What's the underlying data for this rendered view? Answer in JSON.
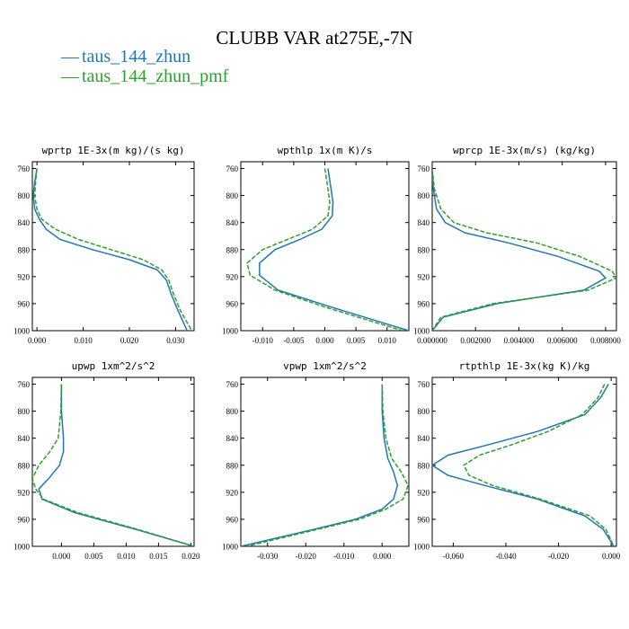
{
  "title": "CLUBB VAR at275E,-7N",
  "legend": [
    {
      "name": "taus_144_zhun",
      "color": "#1f77b4",
      "style": "solid"
    },
    {
      "name": "taus_144_zhun_pmf",
      "color": "#2ca02c",
      "style": "dashed"
    }
  ],
  "chart_data": [
    {
      "type": "line",
      "title": "wprtp   1E-3x(m kg)/(s kg)",
      "xlim": [
        -0.001,
        0.034
      ],
      "ylim": [
        1000,
        750
      ],
      "xticks": [
        0.0,
        0.01,
        0.02,
        0.03
      ],
      "xtick_labels": [
        "0.000",
        "0.010",
        "0.020",
        "0.030"
      ],
      "yticks": [
        760,
        800,
        840,
        880,
        920,
        960,
        1000
      ],
      "ytick_labels": [
        "760",
        "800",
        "840",
        "880",
        "920",
        "960",
        "1000"
      ],
      "series": [
        {
          "name": "taus_144_zhun",
          "x": [
            0.0,
            -0.0005,
            -0.0008,
            -0.0005,
            0.0005,
            0.002,
            0.005,
            0.012,
            0.02,
            0.026,
            0.028,
            0.029,
            0.0305,
            0.0325
          ],
          "y": [
            760,
            780,
            800,
            820,
            835,
            850,
            865,
            880,
            895,
            910,
            925,
            945,
            970,
            1000
          ]
        },
        {
          "name": "taus_144_zhun_pmf",
          "x": [
            0.0,
            -0.0003,
            -0.0005,
            0.0,
            0.001,
            0.004,
            0.009,
            0.016,
            0.023,
            0.027,
            0.0285,
            0.0295,
            0.031,
            0.0335
          ],
          "y": [
            760,
            780,
            800,
            820,
            835,
            850,
            865,
            880,
            895,
            910,
            925,
            945,
            970,
            1000
          ]
        }
      ]
    },
    {
      "type": "line",
      "title": "wpthlp   1x(m K)/s",
      "xlim": [
        -0.0135,
        0.0135
      ],
      "ylim": [
        1000,
        750
      ],
      "xticks": [
        -0.01,
        -0.005,
        0.0,
        0.005,
        0.01
      ],
      "xtick_labels": [
        "-0.010",
        "-0.005",
        "0.000",
        "0.005",
        "0.010"
      ],
      "yticks": [
        760,
        800,
        840,
        880,
        920,
        960,
        1000
      ],
      "ytick_labels": [
        "760",
        "800",
        "840",
        "880",
        "920",
        "960",
        "1000"
      ],
      "series": [
        {
          "name": "taus_144_zhun",
          "x": [
            0.0005,
            0.001,
            0.0013,
            0.0012,
            -0.0005,
            -0.004,
            -0.008,
            -0.0105,
            -0.0105,
            -0.0075,
            0.001,
            0.0135
          ],
          "y": [
            760,
            790,
            810,
            830,
            850,
            865,
            880,
            900,
            918,
            940,
            965,
            1000
          ]
        },
        {
          "name": "taus_144_zhun_pmf",
          "x": [
            0.0,
            0.0005,
            0.0008,
            0.0005,
            -0.002,
            -0.006,
            -0.01,
            -0.0125,
            -0.012,
            -0.008,
            0.0,
            0.0125
          ],
          "y": [
            760,
            790,
            810,
            830,
            850,
            865,
            880,
            900,
            918,
            940,
            965,
            1000
          ]
        }
      ]
    },
    {
      "type": "line",
      "title": "wprcp   1E-3x(m/s) (kg/kg)",
      "xlim": [
        0.0,
        0.0085
      ],
      "ylim": [
        1000,
        750
      ],
      "xticks": [
        0.0,
        0.002,
        0.004,
        0.006,
        0.008
      ],
      "xtick_labels": [
        "0.000000",
        "0.002000",
        "0.004000",
        "0.006000",
        "0.008000"
      ],
      "yticks": [
        760,
        800,
        840,
        880,
        920,
        960,
        1000
      ],
      "ytick_labels": [
        "760",
        "800",
        "840",
        "880",
        "920",
        "960",
        "1000"
      ],
      "series": [
        {
          "name": "taus_144_zhun",
          "x": [
            0.0,
            5e-05,
            0.0002,
            0.0006,
            0.0015,
            0.0035,
            0.0058,
            0.0077,
            0.008,
            0.007,
            0.003,
            0.0005,
            0.0
          ],
          "y": [
            760,
            790,
            820,
            840,
            855,
            870,
            890,
            912,
            922,
            940,
            960,
            980,
            1000
          ]
        },
        {
          "name": "taus_144_zhun_pmf",
          "x": [
            0.0,
            0.0001,
            0.0004,
            0.001,
            0.0025,
            0.0048,
            0.0068,
            0.0083,
            0.0085,
            0.0072,
            0.0028,
            0.0004,
            0.0
          ],
          "y": [
            760,
            790,
            820,
            840,
            855,
            870,
            890,
            912,
            922,
            940,
            960,
            980,
            1000
          ]
        }
      ]
    },
    {
      "type": "line",
      "title": "upwp   1xm^2/s^2",
      "xlim": [
        -0.0045,
        0.0205
      ],
      "ylim": [
        1000,
        750
      ],
      "xticks": [
        0.0,
        0.005,
        0.01,
        0.015,
        0.02
      ],
      "xtick_labels": [
        "0.000",
        "0.005",
        "0.010",
        "0.015",
        "0.020"
      ],
      "yticks": [
        760,
        800,
        840,
        880,
        920,
        960,
        1000
      ],
      "ytick_labels": [
        "760",
        "800",
        "840",
        "880",
        "920",
        "960",
        "1000"
      ],
      "series": [
        {
          "name": "taus_144_zhun",
          "x": [
            0.0,
            0.0,
            0.0003,
            0.0003,
            -0.0003,
            -0.002,
            -0.0035,
            -0.003,
            0.002,
            0.0115,
            0.0205
          ],
          "y": [
            760,
            800,
            840,
            860,
            880,
            900,
            915,
            930,
            950,
            975,
            1000
          ]
        },
        {
          "name": "taus_144_zhun_pmf",
          "x": [
            0.0,
            -0.0001,
            -0.0005,
            -0.0018,
            -0.0035,
            -0.0045,
            -0.004,
            -0.0028,
            0.0025,
            0.0118,
            0.0205
          ],
          "y": [
            760,
            800,
            840,
            860,
            880,
            900,
            915,
            930,
            950,
            975,
            1000
          ]
        }
      ]
    },
    {
      "type": "line",
      "title": "vpwp   1xm^2/s^2",
      "xlim": [
        -0.037,
        0.007
      ],
      "ylim": [
        1000,
        750
      ],
      "xticks": [
        -0.03,
        -0.02,
        -0.01,
        0.0
      ],
      "xtick_labels": [
        "-0.030",
        "-0.020",
        "-0.010",
        "0.000"
      ],
      "yticks": [
        760,
        800,
        840,
        880,
        920,
        960,
        1000
      ],
      "ytick_labels": [
        "760",
        "800",
        "840",
        "880",
        "920",
        "960",
        "1000"
      ],
      "series": [
        {
          "name": "taus_144_zhun",
          "x": [
            0.0,
            0.0,
            0.0005,
            0.0015,
            0.003,
            0.004,
            0.003,
            0.0,
            -0.007,
            -0.018,
            -0.037
          ],
          "y": [
            760,
            800,
            840,
            870,
            890,
            910,
            930,
            945,
            960,
            975,
            1000
          ]
        },
        {
          "name": "taus_144_zhun_pmf",
          "x": [
            0.0,
            0.0002,
            0.001,
            0.0025,
            0.005,
            0.0068,
            0.0055,
            0.001,
            -0.006,
            -0.017,
            -0.0355
          ],
          "y": [
            760,
            800,
            840,
            870,
            890,
            910,
            930,
            945,
            960,
            975,
            1000
          ]
        }
      ]
    },
    {
      "type": "line",
      "title": "rtpthlp   1E-3x(kg K)/kg",
      "xlim": [
        -0.068,
        0.002
      ],
      "ylim": [
        1000,
        750
      ],
      "xticks": [
        -0.06,
        -0.04,
        -0.02,
        0.0
      ],
      "xtick_labels": [
        "-0.060",
        "-0.040",
        "-0.020",
        "0.000"
      ],
      "yticks": [
        760,
        800,
        840,
        880,
        920,
        960,
        1000
      ],
      "ytick_labels": [
        "760",
        "800",
        "840",
        "880",
        "920",
        "960",
        "1000"
      ],
      "series": [
        {
          "name": "taus_144_zhun",
          "x": [
            -0.001,
            -0.004,
            -0.01,
            -0.028,
            -0.047,
            -0.062,
            -0.068,
            -0.062,
            -0.048,
            -0.028,
            -0.01,
            -0.003,
            0.001
          ],
          "y": [
            760,
            780,
            805,
            830,
            850,
            865,
            880,
            895,
            910,
            930,
            955,
            975,
            1000
          ]
        },
        {
          "name": "taus_144_zhun_pmf",
          "x": [
            -0.0025,
            -0.005,
            -0.011,
            -0.024,
            -0.038,
            -0.05,
            -0.056,
            -0.054,
            -0.045,
            -0.027,
            -0.008,
            -0.002,
            0.001
          ],
          "y": [
            760,
            780,
            805,
            830,
            850,
            865,
            880,
            895,
            910,
            930,
            955,
            975,
            1000
          ]
        }
      ]
    }
  ]
}
